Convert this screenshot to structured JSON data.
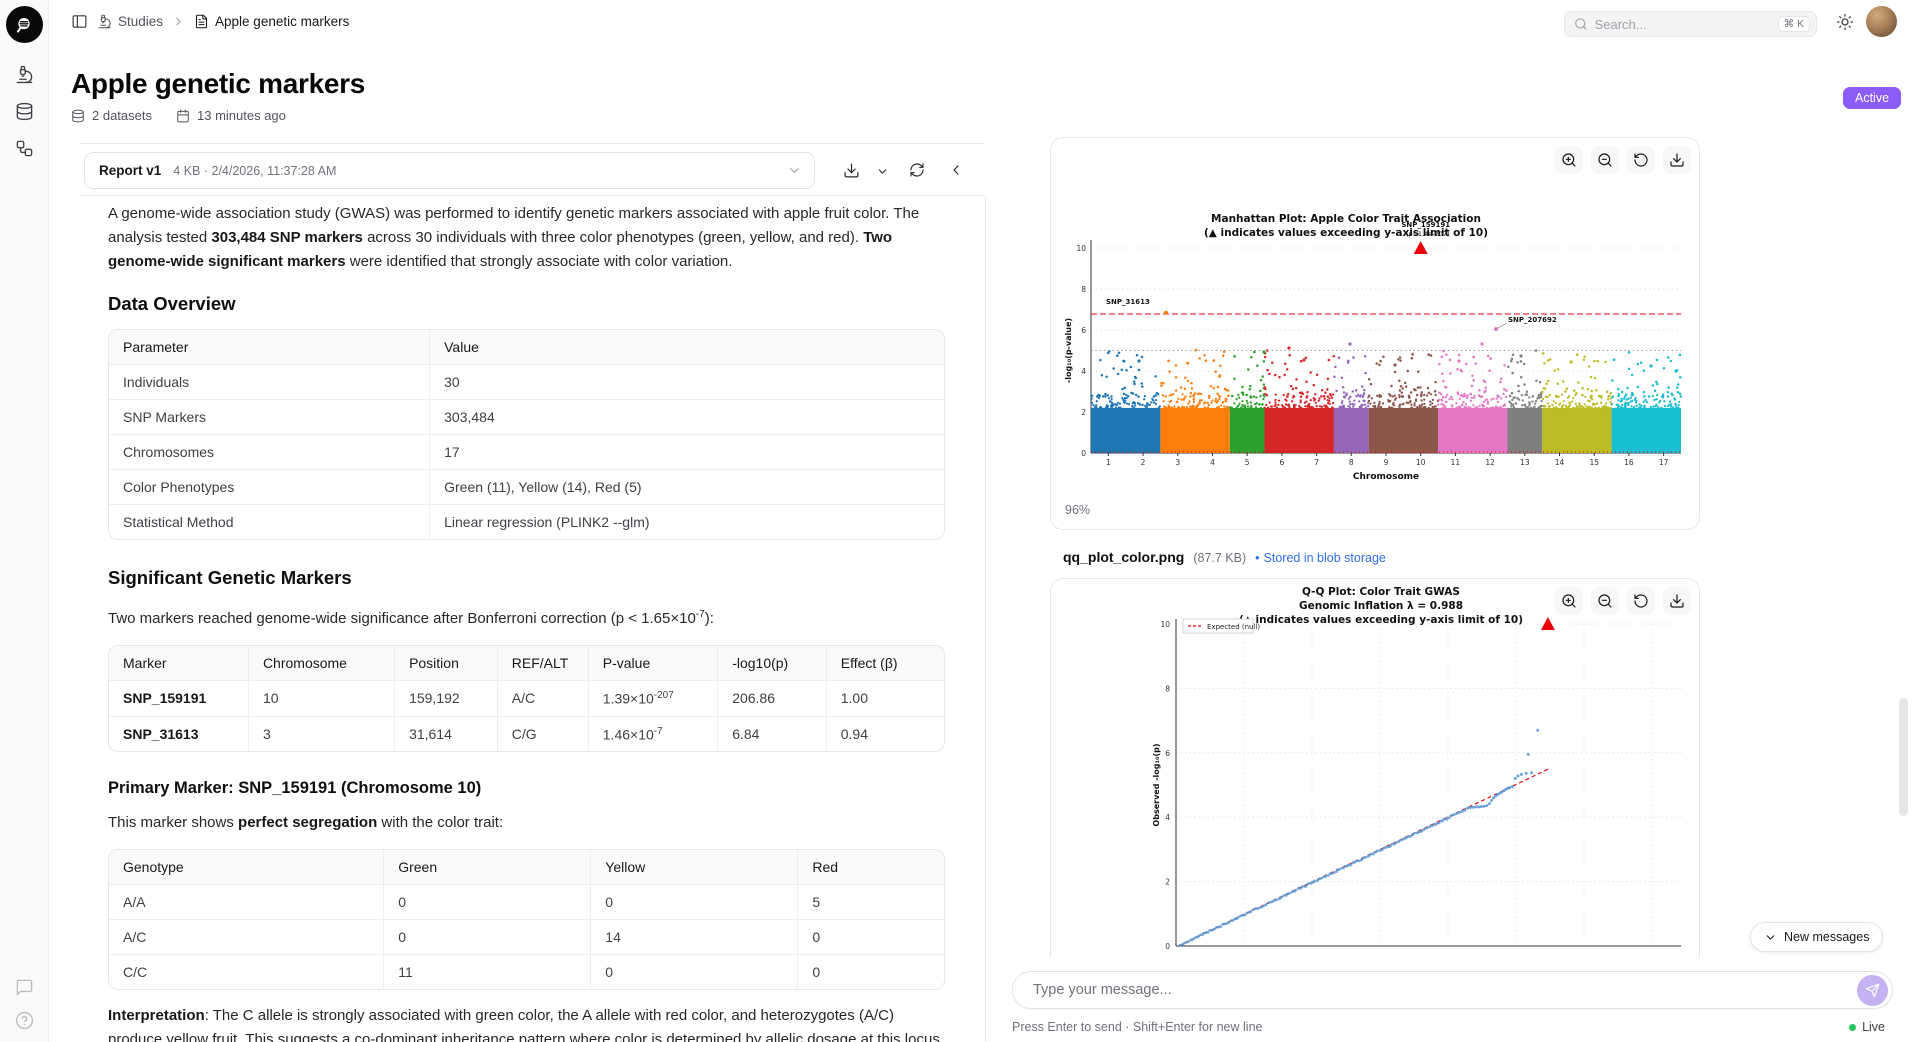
{
  "topbar": {
    "breadcrumb_section": "Studies",
    "breadcrumb_page": "Apple genetic markers",
    "search_placeholder": "Search...",
    "search_shortcut": "⌘ K"
  },
  "page": {
    "title": "Apple genetic markers",
    "datasets": "2 datasets",
    "updated": "13 minutes ago",
    "status": "Active"
  },
  "report": {
    "selector_name": "Report v1",
    "selector_meta": "4 KB · 2/4/2026, 11:37:28 AM",
    "intro": {
      "t1": "A genome-wide association study (GWAS) was performed to identify genetic markers associated with apple fruit color. The analysis tested ",
      "b1": "303,484 SNP markers",
      "t2": " across 30 individuals with three color phenotypes (green, yellow, and red). ",
      "b2": "Two genome-wide significant markers",
      "t3": " were identified that strongly associate with color variation."
    },
    "h_overview": "Data Overview",
    "overview_table": {
      "headers": [
        "Parameter",
        "Value"
      ],
      "rows": [
        [
          "Individuals",
          "30"
        ],
        [
          "SNP Markers",
          "303,484"
        ],
        [
          "Chromosomes",
          "17"
        ],
        [
          "Color Phenotypes",
          "Green (11), Yellow (14), Red (5)"
        ],
        [
          "Statistical Method",
          "Linear regression (PLINK2 --glm)"
        ]
      ]
    },
    "h_markers": "Significant Genetic Markers",
    "markers_note": {
      "t1": "Two markers reached genome-wide significance after Bonferroni correction (p < 1.65×10",
      "sup": "-7",
      "t2": "):"
    },
    "markers_table": {
      "headers": [
        "Marker",
        "Chromosome",
        "Position",
        "REF/ALT",
        "P-value",
        "-log10(p)",
        "Effect (β)"
      ],
      "rows": [
        [
          {
            "t": "SNP_159191",
            "b": true
          },
          "10",
          "159,192",
          "A/C",
          {
            "t": "1.39×10",
            "sup": "-207"
          },
          "206.86",
          "1.00"
        ],
        [
          {
            "t": "SNP_31613",
            "b": true
          },
          "3",
          "31,614",
          "C/G",
          {
            "t": "1.46×10",
            "sup": "-7"
          },
          "6.84",
          "0.94"
        ]
      ]
    },
    "h_primary": "Primary Marker: SNP_159191 (Chromosome 10)",
    "primary_note": {
      "t1": "This marker shows ",
      "b1": "perfect segregation",
      "t2": " with the color trait:"
    },
    "genotype_table": {
      "headers": [
        "Genotype",
        "Green",
        "Yellow",
        "Red"
      ],
      "rows": [
        [
          "A/A",
          "0",
          "0",
          "5"
        ],
        [
          "A/C",
          "0",
          "14",
          "0"
        ],
        [
          "C/C",
          "11",
          "0",
          "0"
        ]
      ]
    },
    "interpretation": {
      "b1": "Interpretation",
      "t1": ": The C allele is strongly associated with green color, the A allele with red color, and heterozygotes (A/C) produce yellow fruit. This suggests a co-dominant inheritance pattern where color is determined by allelic dosage at this locus."
    }
  },
  "files": {
    "qq_name": "qq_plot_color.png",
    "qq_size": "(87.7 KB)",
    "qq_bullet": "•",
    "qq_storage": "Stored in blob storage"
  },
  "figures": {
    "manhattan": {
      "type": "scatter",
      "title_line1": "Manhattan Plot: Apple Color Trait Association",
      "title_line2": "(▲ indicates values exceeding y-axis limit of 10)",
      "ylabel": "-log₁₀(p-value)",
      "xlabel": "Chromosome",
      "ylim": [
        0,
        10
      ],
      "yticks": [
        0,
        2,
        4,
        6,
        8,
        10
      ],
      "xticks": [
        1,
        2,
        3,
        4,
        5,
        6,
        7,
        8,
        9,
        10,
        11,
        12,
        13,
        14,
        15,
        16,
        17
      ],
      "genomewide_line": 6.78,
      "suggestive_line": 5.0,
      "line_color": "#e8000b",
      "suggestive_color": "#9a9a9a",
      "clipped_point": {
        "label": "SNP_159191",
        "sub": "(p=1.4e-207)",
        "chr": 10,
        "value": 10
      },
      "annotations": [
        {
          "label": "SNP_31613",
          "chr": 3,
          "value": 6.84
        },
        {
          "label": "SNP_207692",
          "chr": 12.5,
          "value": 6.05
        }
      ],
      "chromosome_colors": [
        "#1f77b4",
        "#ff7f0e",
        "#2ca02c",
        "#d62728",
        "#9467bd",
        "#8c564b",
        "#e377c2",
        "#7f7f7f",
        "#bcbd22",
        "#17becf"
      ],
      "color_spans": [
        2,
        2,
        1,
        2,
        1,
        2,
        2,
        1,
        2,
        2
      ],
      "zoom_label": "96%"
    },
    "qq": {
      "type": "scatter",
      "title_line1": "Q-Q Plot: Color Trait GWAS",
      "title_line2": "Genomic Inflation λ = 0.988",
      "title_line3": "(▲ indicates values exceeding y-axis limit of 10)",
      "ylabel": "Observed -log₁₀(p)",
      "legend": "Expected (null)",
      "ylim": [
        0,
        10
      ],
      "yticks": [
        0,
        2,
        4,
        6,
        8,
        10
      ],
      "line_color": "#e8000b",
      "point_color": "#5b9bd5",
      "tail_points": [
        [
          4.02,
          4.05
        ],
        [
          4.06,
          4.08
        ],
        [
          4.1,
          4.12
        ],
        [
          4.14,
          4.15
        ],
        [
          4.18,
          4.18
        ],
        [
          4.22,
          4.22
        ],
        [
          4.26,
          4.28
        ],
        [
          4.3,
          4.3
        ],
        [
          4.34,
          4.31
        ],
        [
          4.38,
          4.32
        ],
        [
          4.42,
          4.32
        ],
        [
          4.46,
          4.33
        ],
        [
          4.5,
          4.34
        ],
        [
          4.54,
          4.36
        ],
        [
          4.58,
          4.42
        ],
        [
          4.61,
          4.52
        ],
        [
          4.64,
          4.6
        ],
        [
          4.67,
          4.66
        ],
        [
          4.7,
          4.7
        ],
        [
          4.73,
          4.74
        ],
        [
          4.76,
          4.78
        ],
        [
          4.79,
          4.82
        ],
        [
          4.82,
          4.86
        ],
        [
          4.85,
          4.9
        ],
        [
          4.88,
          4.92
        ],
        [
          4.92,
          4.95
        ],
        [
          4.96,
          5.2
        ],
        [
          5.0,
          5.28
        ],
        [
          5.05,
          5.33
        ],
        [
          5.12,
          5.36
        ],
        [
          5.2,
          5.38
        ],
        [
          5.15,
          5.95
        ],
        [
          5.29,
          6.7
        ]
      ],
      "clipped_point_expected": 5.44
    }
  },
  "chat": {
    "new_messages": "New messages",
    "placeholder": "Type your message...",
    "hint": "Press Enter to send · Shift+Enter for new line",
    "live": "Live"
  }
}
